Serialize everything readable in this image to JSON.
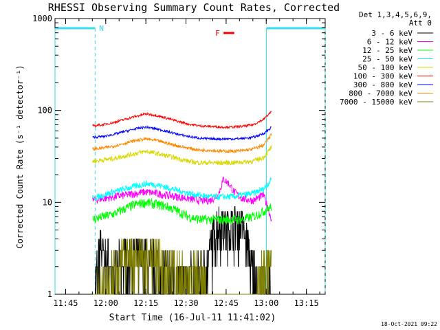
{
  "chart_data": {
    "type": "line",
    "title": "RHESSI Observing Summary Count Rates, Corrected",
    "xlabel": "Start Time (16-Jul-11 11:41:02)",
    "ylabel": "Corrected Count Rate (s⁻¹ detector⁻¹)",
    "yscale": "log",
    "ylim": [
      1,
      1000
    ],
    "xlim_minutes": [
      0,
      101
    ],
    "xtick_labels": [
      "11:45",
      "12:00",
      "12:15",
      "12:30",
      "12:45",
      "13:00",
      "13:15"
    ],
    "ytick_labels": [
      "1",
      "10",
      "100",
      "1000"
    ],
    "legend_header": [
      "Det 1,3,4,5,6,9,",
      "Att 0"
    ],
    "legend_position": "top-right",
    "x_unit": "minutes since 11:41:02",
    "series": [
      {
        "name": "3 - 6 keV",
        "color": "#000000",
        "x": [
          14,
          16,
          17,
          18,
          20,
          22,
          26,
          30,
          34,
          38,
          42,
          46,
          50,
          54,
          56,
          58,
          60,
          62,
          64,
          66,
          68,
          70,
          72,
          74,
          76,
          78,
          80,
          81
        ],
        "y": [
          1,
          2,
          4.5,
          3,
          2.5,
          2.2,
          2.8,
          3,
          2.8,
          2.5,
          2.2,
          1.8,
          1.7,
          1.8,
          1.9,
          3.5,
          6,
          6.5,
          5.5,
          6,
          6.5,
          6,
          4,
          2,
          1.5,
          1.5,
          1.5,
          1.3
        ]
      },
      {
        "name": "6 - 12 keV",
        "color": "#ff00ff",
        "x": [
          14,
          18,
          22,
          26,
          30,
          34,
          38,
          42,
          46,
          50,
          54,
          58,
          61,
          63,
          65,
          67,
          70,
          74,
          78,
          81
        ],
        "y": [
          10.5,
          11,
          11.5,
          12,
          12.5,
          13,
          12.5,
          12,
          11.5,
          11,
          10.5,
          10.5,
          12,
          18,
          16,
          13,
          11,
          10.5,
          12,
          6.5
        ]
      },
      {
        "name": "12 - 25 keV",
        "color": "#00ff00",
        "x": [
          14,
          18,
          22,
          26,
          30,
          34,
          38,
          42,
          46,
          50,
          54,
          58,
          62,
          66,
          70,
          74,
          78,
          81
        ],
        "y": [
          6.5,
          7,
          7.5,
          8.5,
          9.5,
          10,
          9.5,
          9,
          8,
          7,
          6.5,
          6.5,
          6.5,
          6.5,
          6.5,
          7,
          8,
          9
        ]
      },
      {
        "name": "25 - 50 keV",
        "color": "#00ffff",
        "x": [
          14,
          18,
          22,
          26,
          30,
          34,
          38,
          42,
          46,
          50,
          54,
          58,
          62,
          66,
          70,
          74,
          78,
          81
        ],
        "y": [
          11,
          12,
          13,
          14,
          15,
          16,
          15.5,
          14.5,
          13.5,
          12.5,
          12,
          11.5,
          11.5,
          11.5,
          12,
          12.5,
          14,
          18
        ]
      },
      {
        "name": "50 - 100 keV",
        "color": "#d8d800",
        "x": [
          14,
          18,
          22,
          26,
          30,
          34,
          38,
          42,
          46,
          50,
          54,
          58,
          62,
          66,
          70,
          74,
          78,
          81
        ],
        "y": [
          28,
          29,
          30,
          32,
          34,
          36,
          34,
          32,
          30,
          28,
          27,
          27,
          27,
          27,
          27.5,
          28,
          31,
          40
        ]
      },
      {
        "name": "100 - 300 keV",
        "color": "#ff0000",
        "x": [
          14,
          18,
          22,
          26,
          30,
          34,
          38,
          42,
          46,
          50,
          54,
          58,
          62,
          66,
          70,
          74,
          78,
          81
        ],
        "y": [
          68,
          70,
          74,
          80,
          86,
          92,
          88,
          82,
          76,
          71,
          68,
          67,
          66,
          66,
          67,
          70,
          80,
          98
        ]
      },
      {
        "name": "300 - 800 keV",
        "color": "#0000ff",
        "x": [
          14,
          18,
          22,
          26,
          30,
          34,
          38,
          42,
          46,
          50,
          54,
          58,
          62,
          66,
          70,
          74,
          78,
          81
        ],
        "y": [
          51,
          52,
          55,
          59,
          63,
          66,
          63,
          59,
          55,
          52,
          50,
          49,
          49,
          49,
          49.5,
          51,
          56,
          66
        ]
      },
      {
        "name": "800 - 7000 keV",
        "color": "#ff8800",
        "x": [
          14,
          18,
          22,
          26,
          30,
          34,
          38,
          42,
          46,
          50,
          54,
          58,
          62,
          66,
          70,
          74,
          78,
          81
        ],
        "y": [
          38,
          39,
          41,
          44,
          47,
          49,
          47,
          44,
          41,
          39,
          37,
          37,
          36,
          36,
          36.5,
          38,
          42,
          55
        ]
      },
      {
        "name": "7000 - 15000 keV",
        "color": "#808000",
        "x": [
          14,
          18,
          22,
          26,
          30,
          34,
          38,
          42,
          46,
          50,
          54,
          58,
          62,
          66,
          70,
          74,
          78,
          81
        ],
        "y": [
          1,
          1.5,
          2,
          3,
          3,
          3,
          3,
          2,
          2,
          2,
          2,
          1,
          1,
          1,
          1,
          1,
          2,
          3
        ]
      }
    ],
    "annotations": {
      "night_marker": "N",
      "flare_marker": "F",
      "night_intervals_min": [
        [
          0,
          15
        ],
        [
          79,
          101
        ]
      ],
      "flare_interval_min": [
        63,
        67
      ]
    },
    "timestamp": "18-Oct-2021 09:22"
  }
}
